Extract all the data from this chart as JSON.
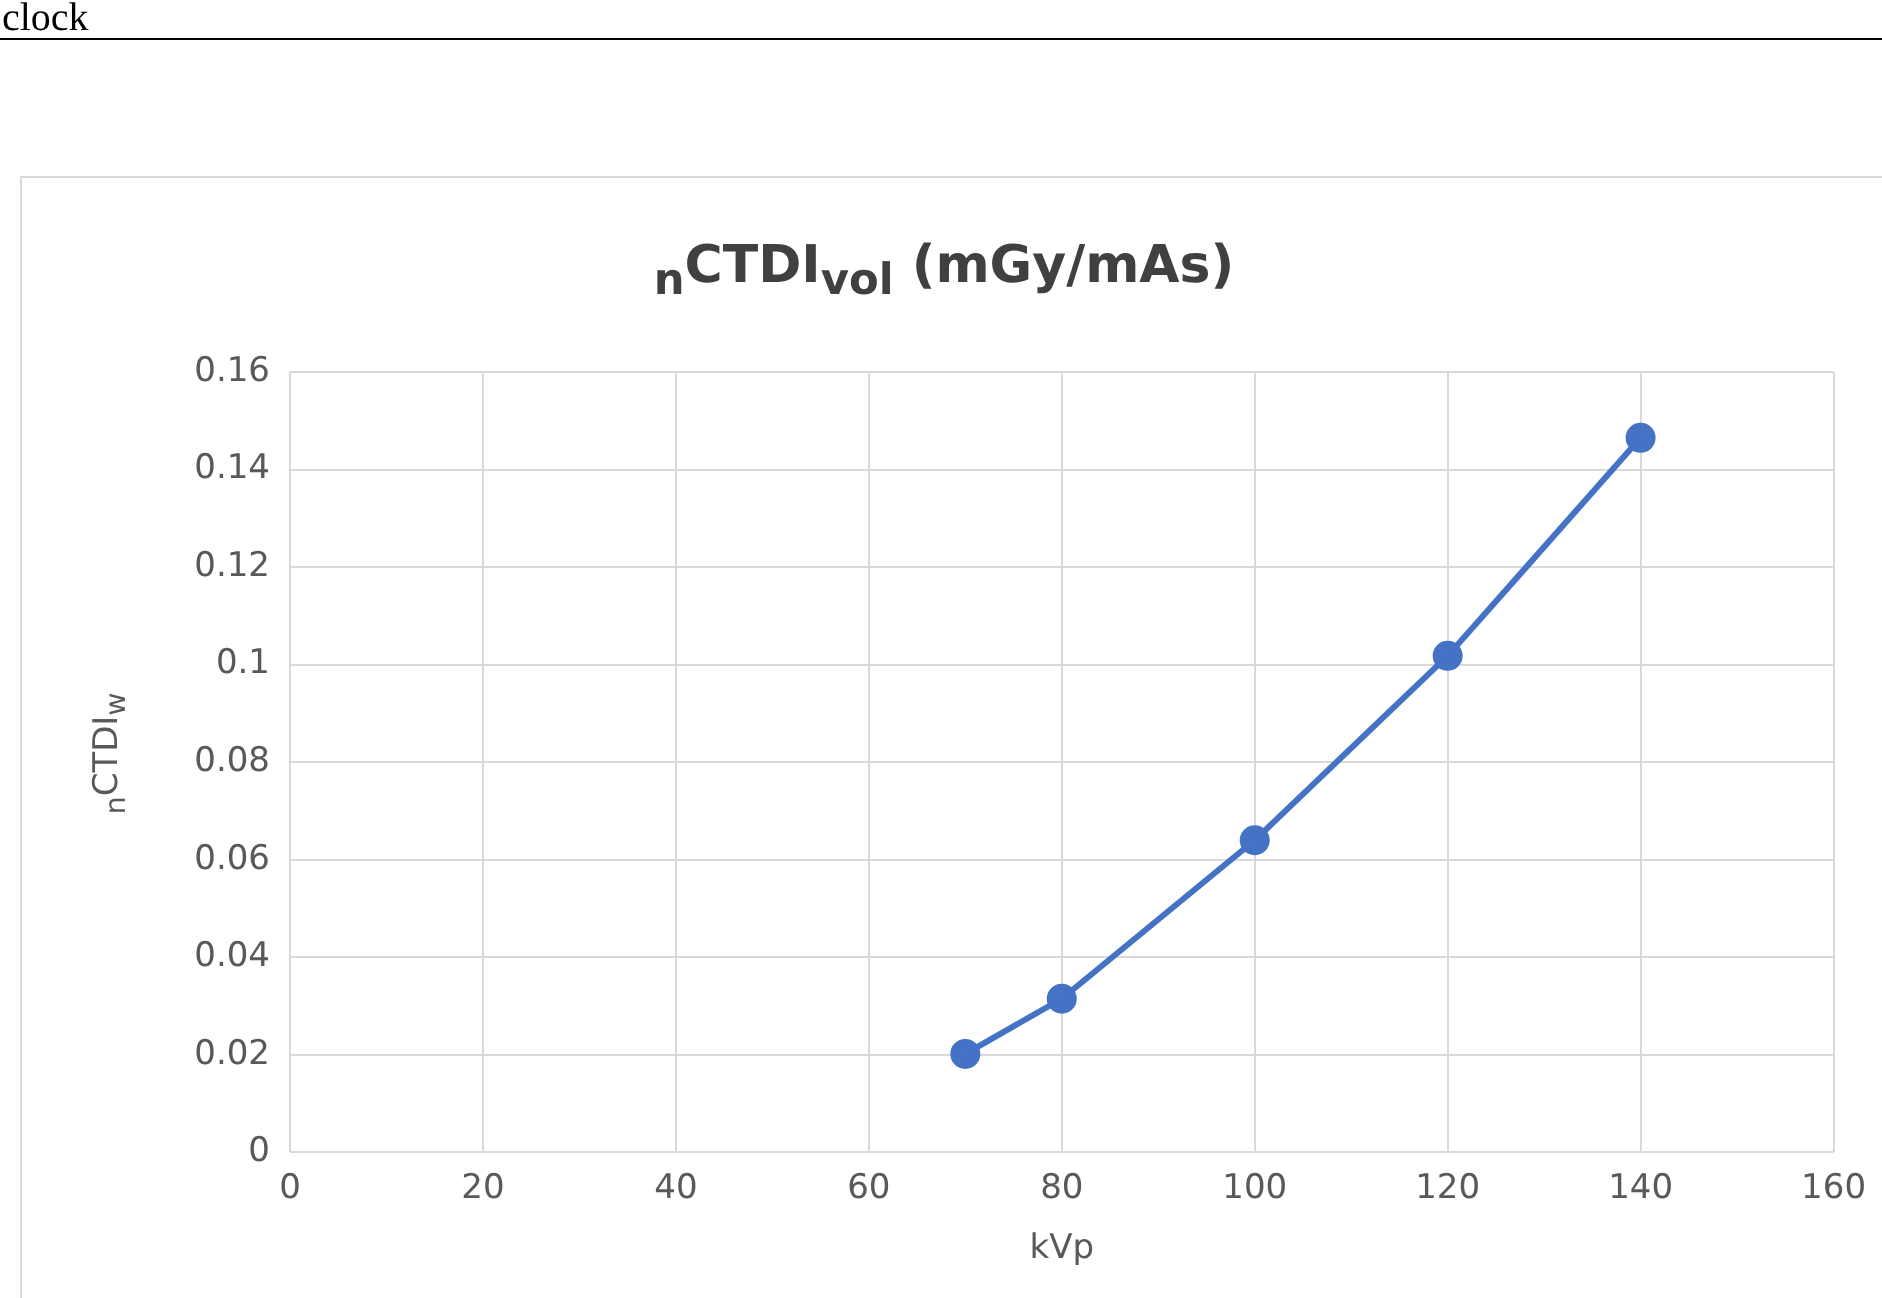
{
  "chart_data": {
    "type": "line",
    "title": "$_{n}$CTDI$_{vol}$ (mGy/mAs)",
    "xlabel": "kVp",
    "ylabel": "$_{n}$CTDI$_{w}$",
    "annotations": [
      "clock"
    ],
    "x": [
      70,
      80,
      100,
      120,
      140
    ],
    "series": [
      {
        "color": "#4472c4",
        "values": [
          0.0202,
          0.0315,
          0.064,
          0.1018,
          0.1465
        ]
      }
    ],
    "xlim": [
      0,
      160
    ],
    "xticks": [
      0,
      20,
      40,
      60,
      80,
      100,
      120,
      140,
      160
    ],
    "ylim": [
      0,
      0.16
    ],
    "yticks": [
      0,
      0.02,
      0.04,
      0.06,
      0.08,
      0.1,
      0.12,
      0.14,
      0.16
    ],
    "grid": true,
    "legend": false,
    "marker": "circle",
    "line_style": "solid"
  }
}
